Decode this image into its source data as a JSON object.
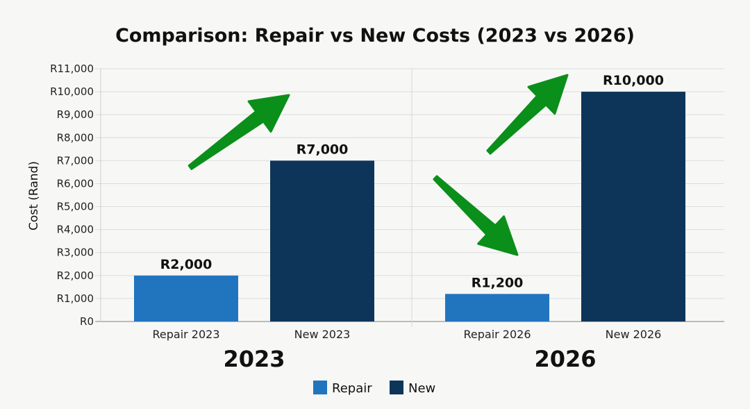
{
  "chart_data": {
    "type": "bar",
    "title": "Comparison: Repair vs New Costs (2023 vs 2026)",
    "xlabel": "",
    "ylabel": "Cost (Rand)",
    "ylim": [
      0,
      11000
    ],
    "yticks": [
      "R0",
      "R1,000",
      "R2,000",
      "R3,000",
      "R4,000",
      "R5,000",
      "R6,000",
      "R7,000",
      "R8,000",
      "R9,000",
      "R10,000",
      "R11,000"
    ],
    "grid": true,
    "categories": [
      "Repair 2023",
      "New 2023",
      "Repair 2026",
      "New 2026"
    ],
    "values": [
      2000,
      7000,
      1200,
      10000
    ],
    "data_labels": [
      "R2,000",
      "R7,000",
      "R1,200",
      "R10,000"
    ],
    "series_of_bar": [
      "Repair",
      "New",
      "Repair",
      "New"
    ],
    "groups": [
      "2023",
      "2026"
    ],
    "legend": {
      "position": "bottom",
      "entries": [
        {
          "name": "Repair",
          "color": "#2175bf"
        },
        {
          "name": "New",
          "color": "#0d3559"
        }
      ]
    },
    "annotations": [
      {
        "type": "arrow-up-icon",
        "color": "#0a8f1a"
      },
      {
        "type": "arrow-down-icon",
        "color": "#0a8f1a"
      },
      {
        "type": "arrow-up-icon",
        "color": "#0a8f1a"
      }
    ]
  }
}
